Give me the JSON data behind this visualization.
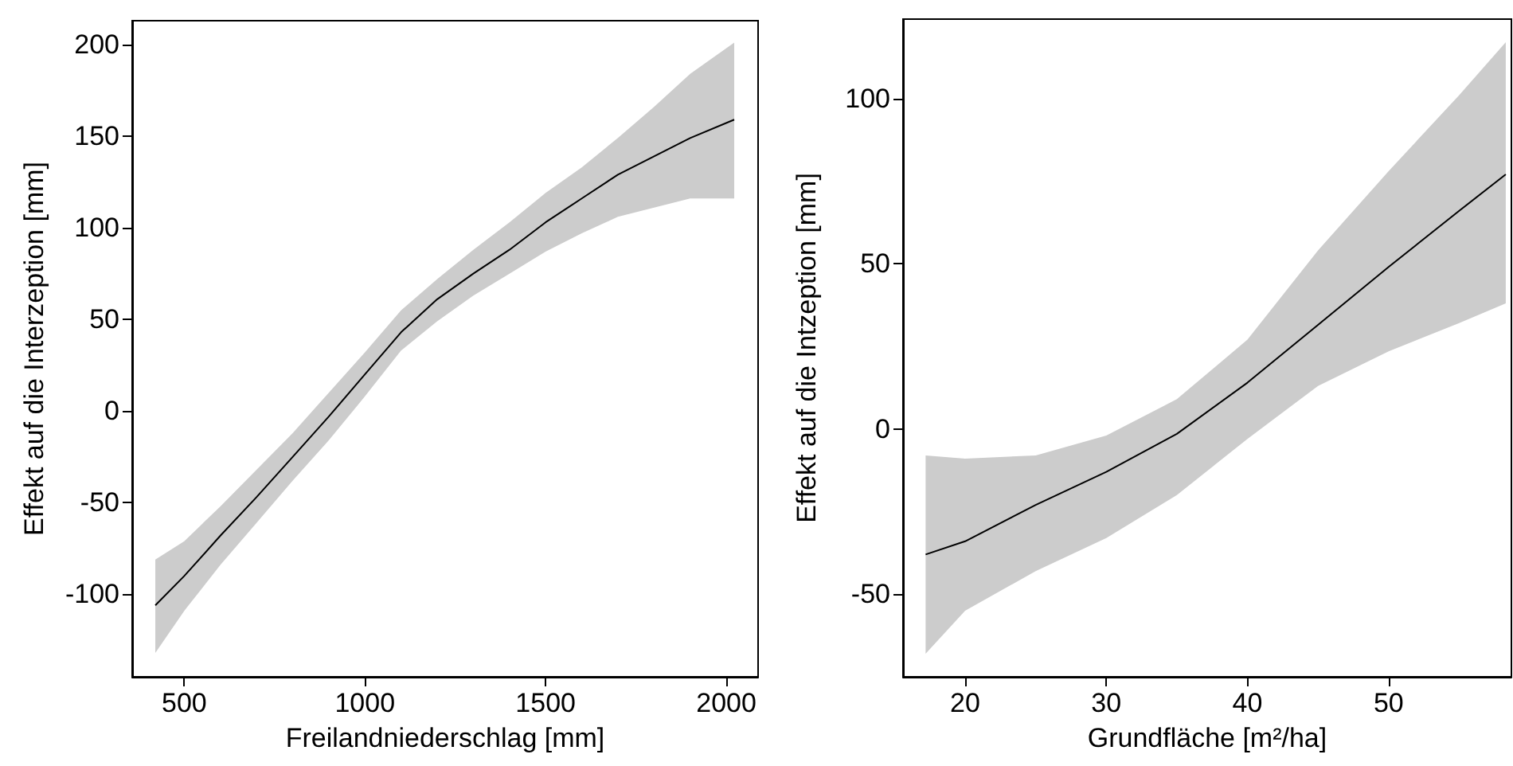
{
  "chart_data": [
    {
      "type": "line",
      "xlabel": "Freilandniederschlag [mm]",
      "ylabel": "Effekt auf die Interzeption [mm]",
      "xlim": [
        356,
        2088
      ],
      "ylim": [
        -145,
        213
      ],
      "xticks": [
        500,
        1000,
        1500,
        2000
      ],
      "yticks": [
        -100,
        -50,
        0,
        50,
        100,
        150,
        200
      ],
      "marker": "none",
      "x": [
        420,
        500,
        600,
        700,
        800,
        900,
        1000,
        1100,
        1200,
        1300,
        1400,
        1500,
        1600,
        1700,
        1800,
        1900,
        2022
      ],
      "series": [
        {
          "color": "#000000",
          "values": [
            -106,
            -90,
            -68,
            -47,
            -25,
            -3,
            20,
            43,
            61,
            75,
            88,
            103,
            116,
            129,
            139,
            149,
            159
          ],
          "lower": [
            -132,
            -109,
            -84,
            -61,
            -38,
            -16,
            8,
            33,
            49,
            63,
            75,
            87,
            97,
            106,
            111,
            116,
            116
          ],
          "upper": [
            -81,
            -71,
            -52,
            -32,
            -12,
            10,
            32,
            55,
            72,
            88,
            103,
            119,
            133,
            149,
            166,
            184,
            201
          ]
        }
      ]
    },
    {
      "type": "line",
      "xlabel": "Grundfläche [m²/ha]",
      "ylabel": "Effekt auf die Intzeption [mm]",
      "xlim": [
        15.6,
        58.7
      ],
      "ylim": [
        -75,
        124
      ],
      "xticks": [
        20,
        30,
        40,
        50
      ],
      "yticks": [
        -50,
        0,
        50,
        100
      ],
      "marker": "none",
      "x": [
        17.2,
        20,
        25,
        30,
        35,
        40,
        45,
        50,
        55,
        58.3
      ],
      "series": [
        {
          "color": "#000000",
          "values": [
            -38,
            -34,
            -23,
            -13,
            -1.5,
            14,
            31.5,
            49,
            66,
            77
          ],
          "lower": [
            -68,
            -55,
            -43,
            -33,
            -20,
            -3,
            13,
            23.5,
            32,
            38
          ],
          "upper": [
            -8,
            -9,
            -8,
            -2,
            9,
            27,
            54,
            78,
            101,
            117
          ]
        }
      ]
    }
  ]
}
